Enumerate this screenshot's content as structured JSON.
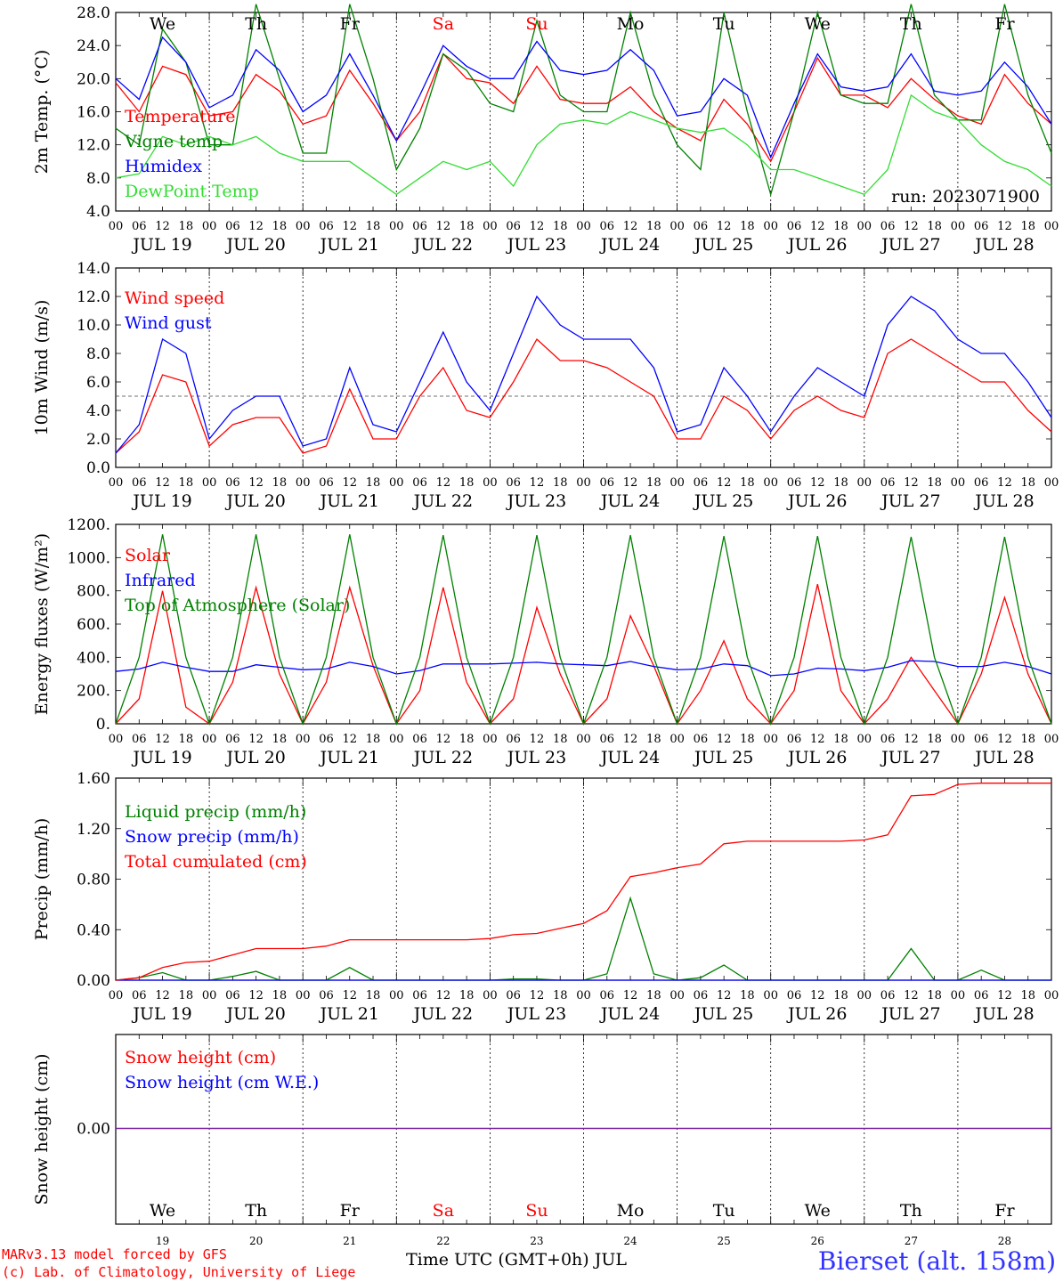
{
  "run_label": "run: 2023071900",
  "station": "Bierset (alt. 158m)",
  "credit_line1": "MARv3.13 model forced by GFS",
  "credit_line2": "(c) Lab. of Climatology, University of Liege",
  "bottom_axis_title": "Time UTC (GMT+0h) JUL",
  "hour_ticks": [
    "00",
    "06",
    "12",
    "18"
  ],
  "final_hour_tick": "00",
  "days": [
    {
      "dow": "We",
      "date": "JUL 19",
      "num": "19",
      "weekend": false
    },
    {
      "dow": "Th",
      "date": "JUL 20",
      "num": "20",
      "weekend": false
    },
    {
      "dow": "Fr",
      "date": "JUL 21",
      "num": "21",
      "weekend": false
    },
    {
      "dow": "Sa",
      "date": "JUL 22",
      "num": "22",
      "weekend": true
    },
    {
      "dow": "Su",
      "date": "JUL 23",
      "num": "23",
      "weekend": true
    },
    {
      "dow": "Mo",
      "date": "JUL 24",
      "num": "24",
      "weekend": false
    },
    {
      "dow": "Tu",
      "date": "JUL 25",
      "num": "25",
      "weekend": false
    },
    {
      "dow": "We",
      "date": "JUL 26",
      "num": "26",
      "weekend": false
    },
    {
      "dow": "Th",
      "date": "JUL 27",
      "num": "27",
      "weekend": false
    },
    {
      "dow": "Fr",
      "date": "JUL 28",
      "num": "28",
      "weekend": false
    }
  ],
  "colors": {
    "red": "#ff0000",
    "green": "#008000",
    "blue": "#0000ff",
    "lightgreen": "#33dd33",
    "purple": "#7a1fa2",
    "weekend": "#ff0000",
    "station": "#3333ff"
  },
  "chart_data": [
    {
      "type": "line",
      "ylabel": "2m Temp. (°C)",
      "ylim": [
        4,
        28
      ],
      "yticks": [
        "4.0",
        "8.0",
        "12.0",
        "16.0",
        "20.0",
        "24.0",
        "28.0"
      ],
      "x_hours": [
        0,
        6,
        12,
        18,
        24,
        30,
        36,
        42,
        48,
        54,
        60,
        66,
        72,
        78,
        84,
        90,
        96,
        102,
        108,
        114,
        120,
        126,
        132,
        138,
        144,
        150,
        156,
        162,
        168,
        174,
        180,
        186,
        192,
        198,
        204,
        210,
        216,
        222,
        228,
        234,
        240
      ],
      "series": [
        {
          "name": "Temperature",
          "color": "#ff0000",
          "values": [
            19.5,
            16,
            21.5,
            20.5,
            15.5,
            16,
            20.5,
            18.5,
            14.5,
            15.5,
            21,
            17,
            12.5,
            16,
            23,
            20,
            19.5,
            17,
            21.5,
            17.5,
            17,
            17,
            19,
            16,
            14,
            12.5,
            17.5,
            14.5,
            10,
            16,
            22.5,
            18,
            18,
            16.5,
            20,
            17.5,
            15.5,
            14.5,
            20.5,
            17,
            14.5
          ]
        },
        {
          "name": "Vigne temp",
          "color": "#008000",
          "values": [
            14,
            12,
            26,
            22,
            12,
            12,
            29,
            20,
            11,
            11,
            29,
            20,
            9,
            14,
            23,
            21,
            17,
            16,
            27,
            18,
            16,
            16,
            28,
            18,
            12,
            9,
            28,
            16,
            6,
            16,
            28,
            18,
            17,
            17,
            29,
            18,
            15,
            15,
            29,
            18,
            11
          ]
        },
        {
          "name": "Humidex",
          "color": "#0000ff",
          "values": [
            20,
            17.5,
            25,
            22,
            16.5,
            18,
            23.5,
            21,
            16,
            18,
            23,
            18,
            12.5,
            18,
            24,
            21.5,
            20,
            20,
            24.5,
            21,
            20.5,
            21,
            23.5,
            21,
            15.5,
            16,
            20,
            18,
            10.5,
            17,
            23,
            19,
            18.5,
            19,
            23,
            18.5,
            18,
            18.5,
            22,
            19,
            14.5
          ]
        },
        {
          "name": "DewPoint Temp",
          "color": "#33dd33",
          "values": [
            8,
            8.5,
            13,
            12,
            13,
            12,
            13,
            11,
            10,
            10,
            10,
            8,
            6,
            8,
            10,
            9,
            10,
            7,
            12,
            14.5,
            15,
            14.5,
            16,
            15,
            14,
            13.5,
            14,
            12,
            9,
            9,
            8,
            7,
            6,
            9,
            18,
            16,
            15,
            12,
            10,
            9,
            7
          ]
        }
      ]
    },
    {
      "type": "line",
      "ylabel": "10m Wind (m/s)",
      "ylim": [
        0,
        14
      ],
      "yticks": [
        "0.0",
        "2.0",
        "4.0",
        "6.0",
        "8.0",
        "10.0",
        "12.0",
        "14.0"
      ],
      "reference_line": 5,
      "x_hours": [
        0,
        6,
        12,
        18,
        24,
        30,
        36,
        42,
        48,
        54,
        60,
        66,
        72,
        78,
        84,
        90,
        96,
        102,
        108,
        114,
        120,
        126,
        132,
        138,
        144,
        150,
        156,
        162,
        168,
        174,
        180,
        186,
        192,
        198,
        204,
        210,
        216,
        222,
        228,
        234,
        240
      ],
      "series": [
        {
          "name": "Wind speed",
          "color": "#ff0000",
          "values": [
            1,
            2.5,
            6.5,
            6,
            1.5,
            3,
            3.5,
            3.5,
            1,
            1.5,
            5.5,
            2,
            2,
            5,
            7,
            4,
            3.5,
            6,
            9,
            7.5,
            7.5,
            7,
            6,
            5,
            2,
            2,
            5,
            4,
            2,
            4,
            5,
            4,
            3.5,
            8,
            9,
            8,
            7,
            6,
            6,
            4,
            2.5
          ]
        },
        {
          "name": "Wind gust",
          "color": "#0000ff",
          "values": [
            1,
            3,
            9,
            8,
            2,
            4,
            5,
            5,
            1.5,
            2,
            7,
            3,
            2.5,
            6,
            9.5,
            6,
            4,
            8,
            12,
            10,
            9,
            9,
            9,
            7,
            2.5,
            3,
            7,
            5,
            2.5,
            5,
            7,
            6,
            5,
            10,
            12,
            11,
            9,
            8,
            8,
            6,
            3.5
          ]
        }
      ]
    },
    {
      "type": "line",
      "ylabel": "Energy fluxes (W/m²)",
      "ylim": [
        0,
        1200
      ],
      "yticks": [
        "0.",
        "200.",
        "400.",
        "600.",
        "800.",
        "1000.",
        "1200."
      ],
      "x_hours": [
        0,
        6,
        12,
        18,
        24,
        30,
        36,
        42,
        48,
        54,
        60,
        66,
        72,
        78,
        84,
        90,
        96,
        102,
        108,
        114,
        120,
        126,
        132,
        138,
        144,
        150,
        156,
        162,
        168,
        174,
        180,
        186,
        192,
        198,
        204,
        210,
        216,
        222,
        228,
        234,
        240
      ],
      "series": [
        {
          "name": "Solar",
          "color": "#ff0000",
          "values": [
            0,
            150,
            800,
            100,
            0,
            250,
            820,
            300,
            0,
            250,
            820,
            350,
            0,
            200,
            820,
            250,
            0,
            150,
            700,
            300,
            0,
            150,
            650,
            350,
            0,
            200,
            500,
            150,
            0,
            200,
            840,
            200,
            0,
            150,
            400,
            200,
            0,
            300,
            760,
            300,
            0
          ]
        },
        {
          "name": "Infrared",
          "color": "#0000ff",
          "values": [
            315,
            330,
            370,
            340,
            315,
            315,
            355,
            340,
            325,
            330,
            370,
            345,
            300,
            320,
            360,
            360,
            360,
            365,
            370,
            360,
            355,
            350,
            375,
            345,
            325,
            330,
            360,
            350,
            290,
            300,
            335,
            330,
            320,
            340,
            380,
            375,
            345,
            345,
            370,
            345,
            300
          ]
        },
        {
          "name": "Top of Atmosphere (Solar)",
          "color": "#008000",
          "values": [
            0,
            400,
            1140,
            400,
            0,
            400,
            1140,
            400,
            0,
            400,
            1140,
            400,
            0,
            400,
            1135,
            400,
            0,
            400,
            1135,
            400,
            0,
            400,
            1135,
            400,
            0,
            400,
            1130,
            400,
            0,
            400,
            1130,
            400,
            0,
            400,
            1125,
            400,
            0,
            400,
            1125,
            400,
            0
          ]
        }
      ]
    },
    {
      "type": "line",
      "ylabel": "Precip (mm/h)",
      "ylim": [
        0,
        1.6
      ],
      "yticks": [
        "0.00",
        "0.40",
        "0.80",
        "1.20",
        "1.60"
      ],
      "x_hours": [
        0,
        6,
        12,
        18,
        24,
        30,
        36,
        42,
        48,
        54,
        60,
        66,
        72,
        78,
        84,
        90,
        96,
        102,
        108,
        114,
        120,
        126,
        132,
        138,
        144,
        150,
        156,
        162,
        168,
        174,
        180,
        186,
        192,
        198,
        204,
        210,
        216,
        222,
        228,
        234,
        240
      ],
      "series": [
        {
          "name": "Liquid precip (mm/h)",
          "color": "#008000",
          "values": [
            0,
            0.02,
            0.06,
            0,
            0,
            0.03,
            0.07,
            0,
            0,
            0,
            0.1,
            0,
            0,
            0,
            0,
            0,
            0,
            0.01,
            0.01,
            0,
            0,
            0.05,
            0.65,
            0.05,
            0,
            0.02,
            0.12,
            0,
            0,
            0,
            0,
            0,
            0,
            0,
            0.25,
            0,
            0,
            0.08,
            0,
            0,
            0
          ]
        },
        {
          "name": "Snow precip (mm/h)",
          "color": "#0000ff",
          "values": [
            0,
            0,
            0,
            0,
            0,
            0,
            0,
            0,
            0,
            0,
            0,
            0,
            0,
            0,
            0,
            0,
            0,
            0,
            0,
            0,
            0,
            0,
            0,
            0,
            0,
            0,
            0,
            0,
            0,
            0,
            0,
            0,
            0,
            0,
            0,
            0,
            0,
            0,
            0,
            0,
            0
          ]
        },
        {
          "name": "Total cumulated (cm)",
          "color": "#ff0000",
          "values": [
            0,
            0.02,
            0.1,
            0.14,
            0.15,
            0.2,
            0.25,
            0.25,
            0.25,
            0.27,
            0.32,
            0.32,
            0.32,
            0.32,
            0.32,
            0.32,
            0.33,
            0.36,
            0.37,
            0.41,
            0.45,
            0.55,
            0.82,
            0.85,
            0.89,
            0.92,
            1.08,
            1.1,
            1.1,
            1.1,
            1.1,
            1.1,
            1.11,
            1.15,
            1.46,
            1.47,
            1.55,
            1.56,
            1.56,
            1.56,
            1.56
          ]
        }
      ]
    },
    {
      "type": "line",
      "ylabel": "Snow height (cm)",
      "yticks": [
        "0.00"
      ],
      "series": [
        {
          "name": "Snow height (cm)",
          "color": "#ff0000",
          "values": [
            0,
            0
          ]
        },
        {
          "name": "Snow height (cm W.E.)",
          "color": "#0000ff",
          "values": [
            0,
            0
          ]
        }
      ]
    }
  ]
}
